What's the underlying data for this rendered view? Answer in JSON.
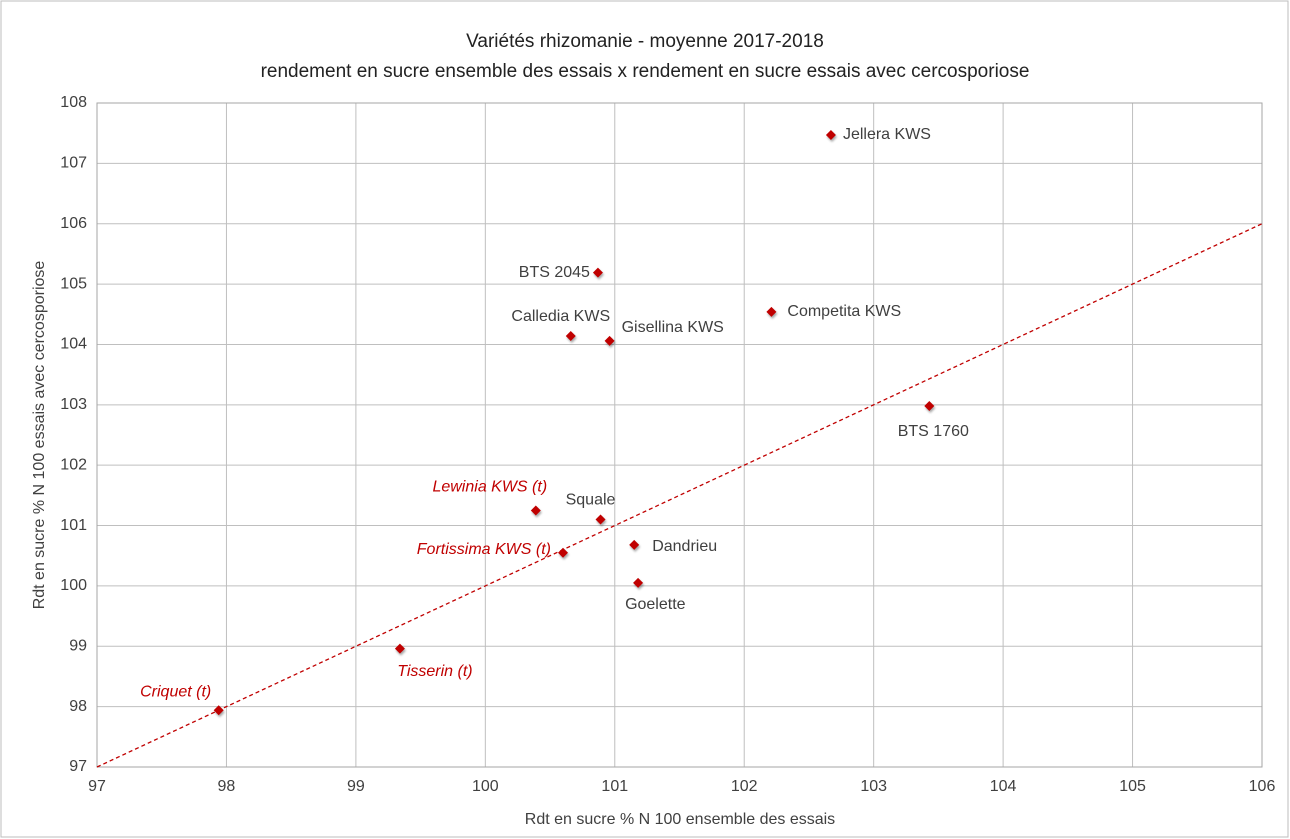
{
  "chart_data": {
    "type": "scatter",
    "title": "Variétés rhizomanie - moyenne 2017-2018",
    "subtitle": "rendement en sucre ensemble des essais x rendement en sucre essais avec cercosporiose",
    "x_label": "Rdt en sucre % N 100 ensemble des essais",
    "y_label": "Rdt en sucre % N 100 essais avec cercosporiose",
    "xlim": [
      97,
      106
    ],
    "ylim": [
      97,
      108
    ],
    "xticks": [
      97,
      98,
      99,
      100,
      101,
      102,
      103,
      104,
      105,
      106
    ],
    "yticks": [
      97,
      98,
      99,
      100,
      101,
      102,
      103,
      104,
      105,
      106,
      107,
      108
    ],
    "grid": true,
    "color": "#c00000",
    "x": [
      102.67,
      100.87,
      100.66,
      100.96,
      102.21,
      103.43,
      100.39,
      100.89,
      100.6,
      101.15,
      101.18,
      99.34,
      97.94
    ],
    "values": [
      107.47,
      105.19,
      104.14,
      104.06,
      104.54,
      102.98,
      101.25,
      101.1,
      100.55,
      100.68,
      100.05,
      98.96,
      97.94
    ],
    "labels": [
      "Jellera KWS",
      "BTS 2045",
      "Calledia KWS",
      "Gisellina KWS",
      "Competita  KWS",
      "BTS 1760",
      "Lewinia KWS (t)",
      "Squale",
      "Fortissima KWS (t)",
      "Dandrieu",
      "Goelette",
      "Tisserin (t)",
      "Criquet (t)"
    ],
    "label_colors": [
      "#404040",
      "#404040",
      "#404040",
      "#404040",
      "#404040",
      "#404040",
      "#c00000",
      "#404040",
      "#c00000",
      "#404040",
      "#404040",
      "#c00000",
      "#c00000"
    ],
    "label_italic": [
      false,
      false,
      false,
      false,
      false,
      false,
      true,
      false,
      true,
      false,
      false,
      true,
      true
    ],
    "diagonal": {
      "x": [
        97,
        106
      ],
      "y": [
        97,
        106
      ],
      "color": "#c00000"
    }
  }
}
